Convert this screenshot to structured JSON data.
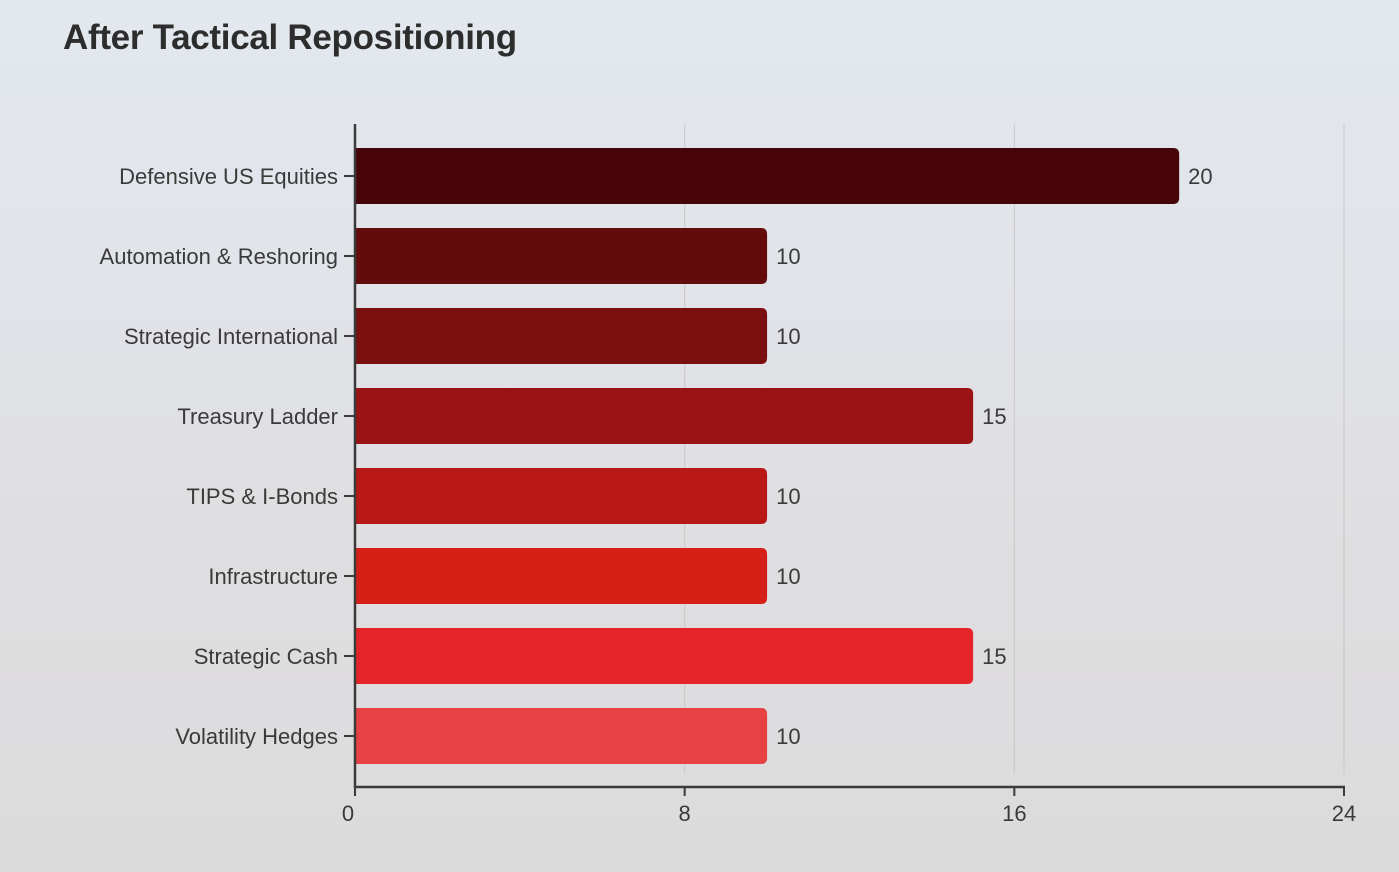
{
  "chart_data": {
    "type": "bar",
    "orientation": "horizontal",
    "title": "After Tactical Repositioning",
    "xlabel": "",
    "ylabel": "",
    "categories": [
      "Defensive US Equities",
      "Automation & Reshoring",
      "Strategic International",
      "Treasury Ladder",
      "TIPS & I-Bonds",
      "Infrastructure",
      "Strategic Cash",
      "Volatility Hedges"
    ],
    "values": [
      20,
      10,
      10,
      15,
      10,
      10,
      15,
      10
    ],
    "xlim": [
      0,
      24
    ],
    "xticks": [
      0,
      8,
      16,
      24
    ],
    "grid": true,
    "legend": "none",
    "colors": [
      "#470509",
      "#630c0b",
      "#7b0e0f",
      "#9a1314",
      "#b81816",
      "#d61f17",
      "#e42428",
      "#e84144"
    ],
    "axis_color": "#3a3a3a",
    "grid_color": "#c8c8c8"
  }
}
